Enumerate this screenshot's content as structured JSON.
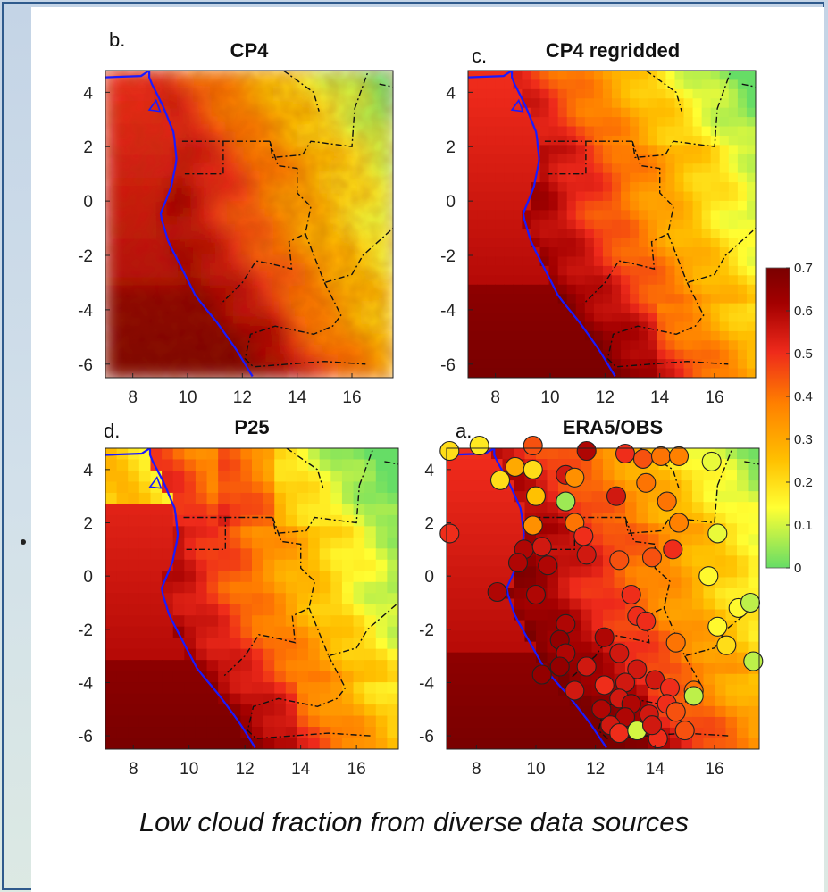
{
  "caption": "Low cloud fraction from diverse data sources",
  "colorbar": {
    "ticks": [
      "0.7",
      "0.6",
      "0.5",
      "0.4",
      "0.3",
      "0.2",
      "0.1",
      "0"
    ],
    "stops": [
      "#66dd66",
      "#ffff33",
      "#ffc000",
      "#ff7f00",
      "#ee2a1b",
      "#a40000",
      "#7a0000"
    ]
  },
  "chart_data": [
    {
      "type": "heatmap",
      "panel_letter": "b.",
      "title": "CP4",
      "x_ticks": [
        8,
        10,
        12,
        14,
        16
      ],
      "y_ticks": [
        4,
        2,
        0,
        -2,
        -4,
        -6
      ],
      "xlim": [
        7.0,
        17.5
      ],
      "ylim": [
        -6.5,
        4.8
      ],
      "value_range": [
        0,
        0.7
      ],
      "description": "high-resolution field"
    },
    {
      "type": "heatmap",
      "panel_letter": "c.",
      "title": "CP4 regridded",
      "x_ticks": [
        8,
        10,
        12,
        14,
        16
      ],
      "y_ticks": [
        4,
        2,
        0,
        -2,
        -4,
        -6
      ],
      "xlim": [
        7.0,
        17.5
      ],
      "ylim": [
        -6.5,
        4.8
      ],
      "value_range": [
        0,
        0.7
      ]
    },
    {
      "type": "heatmap",
      "panel_letter": "d.",
      "title": "P25",
      "x_ticks": [
        8,
        10,
        12,
        14,
        16
      ],
      "y_ticks": [
        4,
        2,
        0,
        -2,
        -4,
        -6
      ],
      "xlim": [
        7.0,
        17.5
      ],
      "ylim": [
        -6.5,
        4.8
      ],
      "value_range": [
        0,
        0.7
      ]
    },
    {
      "type": "scatter",
      "panel_letter": "a.",
      "title": "ERA5/OBS",
      "x_ticks": [
        8,
        10,
        12,
        14,
        16
      ],
      "y_ticks": [
        4,
        2,
        0,
        -2,
        -4,
        -6
      ],
      "xlim": [
        7.0,
        17.5
      ],
      "ylim": [
        -6.5,
        4.8
      ],
      "value_range": [
        0,
        0.7
      ],
      "stations": [
        {
          "x": 7.1,
          "y": 4.7,
          "v": 0.2
        },
        {
          "x": 8.1,
          "y": 4.9,
          "v": 0.18
        },
        {
          "x": 9.9,
          "y": 4.9,
          "v": 0.45
        },
        {
          "x": 11.7,
          "y": 4.7,
          "v": 0.6
        },
        {
          "x": 13.0,
          "y": 4.6,
          "v": 0.5
        },
        {
          "x": 13.6,
          "y": 4.4,
          "v": 0.45
        },
        {
          "x": 14.2,
          "y": 4.5,
          "v": 0.4
        },
        {
          "x": 14.8,
          "y": 4.5,
          "v": 0.38
        },
        {
          "x": 15.9,
          "y": 4.3,
          "v": 0.12
        },
        {
          "x": 9.3,
          "y": 4.1,
          "v": 0.3
        },
        {
          "x": 9.9,
          "y": 4.0,
          "v": 0.2
        },
        {
          "x": 11.0,
          "y": 3.8,
          "v": 0.55
        },
        {
          "x": 11.3,
          "y": 3.7,
          "v": 0.35
        },
        {
          "x": 13.7,
          "y": 3.5,
          "v": 0.4
        },
        {
          "x": 8.8,
          "y": 3.6,
          "v": 0.2
        },
        {
          "x": 10.0,
          "y": 3.0,
          "v": 0.25
        },
        {
          "x": 11.0,
          "y": 2.8,
          "v": 0.05
        },
        {
          "x": 12.7,
          "y": 3.0,
          "v": 0.55
        },
        {
          "x": 14.4,
          "y": 2.8,
          "v": 0.4
        },
        {
          "x": 7.1,
          "y": 1.6,
          "v": 0.5
        },
        {
          "x": 9.9,
          "y": 1.9,
          "v": 0.35
        },
        {
          "x": 11.3,
          "y": 2.0,
          "v": 0.4
        },
        {
          "x": 11.6,
          "y": 1.5,
          "v": 0.5
        },
        {
          "x": 14.8,
          "y": 2.0,
          "v": 0.38
        },
        {
          "x": 16.1,
          "y": 1.6,
          "v": 0.12
        },
        {
          "x": 9.6,
          "y": 1.0,
          "v": 0.6
        },
        {
          "x": 10.2,
          "y": 1.1,
          "v": 0.55
        },
        {
          "x": 11.7,
          "y": 0.8,
          "v": 0.55
        },
        {
          "x": 12.8,
          "y": 0.6,
          "v": 0.45
        },
        {
          "x": 14.6,
          "y": 1.0,
          "v": 0.5
        },
        {
          "x": 9.4,
          "y": 0.5,
          "v": 0.6
        },
        {
          "x": 10.4,
          "y": 0.4,
          "v": 0.6
        },
        {
          "x": 13.9,
          "y": 0.7,
          "v": 0.45
        },
        {
          "x": 15.8,
          "y": 0.0,
          "v": 0.15
        },
        {
          "x": 8.7,
          "y": -0.6,
          "v": 0.6
        },
        {
          "x": 10.0,
          "y": -0.7,
          "v": 0.6
        },
        {
          "x": 13.2,
          "y": -0.7,
          "v": 0.5
        },
        {
          "x": 13.4,
          "y": -1.5,
          "v": 0.5
        },
        {
          "x": 13.7,
          "y": -1.7,
          "v": 0.5
        },
        {
          "x": 11.0,
          "y": -1.8,
          "v": 0.6
        },
        {
          "x": 16.1,
          "y": -1.9,
          "v": 0.15
        },
        {
          "x": 16.8,
          "y": -1.2,
          "v": 0.15
        },
        {
          "x": 17.2,
          "y": -1.0,
          "v": 0.08
        },
        {
          "x": 10.8,
          "y": -2.4,
          "v": 0.65
        },
        {
          "x": 12.3,
          "y": -2.3,
          "v": 0.6
        },
        {
          "x": 14.7,
          "y": -2.5,
          "v": 0.4
        },
        {
          "x": 16.4,
          "y": -2.6,
          "v": 0.2
        },
        {
          "x": 11.0,
          "y": -2.9,
          "v": 0.6
        },
        {
          "x": 12.8,
          "y": -2.9,
          "v": 0.55
        },
        {
          "x": 10.8,
          "y": -3.4,
          "v": 0.65
        },
        {
          "x": 11.7,
          "y": -3.4,
          "v": 0.55
        },
        {
          "x": 13.4,
          "y": -3.5,
          "v": 0.55
        },
        {
          "x": 14.0,
          "y": -3.9,
          "v": 0.55
        },
        {
          "x": 17.3,
          "y": -3.2,
          "v": 0.08
        },
        {
          "x": 10.2,
          "y": -3.7,
          "v": 0.65
        },
        {
          "x": 12.3,
          "y": -4.1,
          "v": 0.5
        },
        {
          "x": 13.0,
          "y": -4.0,
          "v": 0.55
        },
        {
          "x": 14.5,
          "y": -4.2,
          "v": 0.5
        },
        {
          "x": 15.3,
          "y": -4.3,
          "v": 0.4
        },
        {
          "x": 15.3,
          "y": -4.5,
          "v": 0.08
        },
        {
          "x": 11.3,
          "y": -4.3,
          "v": 0.55
        },
        {
          "x": 12.8,
          "y": -4.6,
          "v": 0.55
        },
        {
          "x": 13.2,
          "y": -4.8,
          "v": 0.6
        },
        {
          "x": 12.2,
          "y": -5.0,
          "v": 0.6
        },
        {
          "x": 14.4,
          "y": -4.8,
          "v": 0.5
        },
        {
          "x": 13.8,
          "y": -5.2,
          "v": 0.55
        },
        {
          "x": 14.7,
          "y": -5.1,
          "v": 0.45
        },
        {
          "x": 13.0,
          "y": -5.3,
          "v": 0.6
        },
        {
          "x": 12.5,
          "y": -5.6,
          "v": 0.55
        },
        {
          "x": 12.8,
          "y": -5.9,
          "v": 0.5
        },
        {
          "x": 13.4,
          "y": -5.8,
          "v": 0.1
        },
        {
          "x": 14.1,
          "y": -6.1,
          "v": 0.5
        },
        {
          "x": 15.0,
          "y": -5.8,
          "v": 0.45
        },
        {
          "x": 13.9,
          "y": -5.6,
          "v": 0.55
        }
      ]
    }
  ]
}
